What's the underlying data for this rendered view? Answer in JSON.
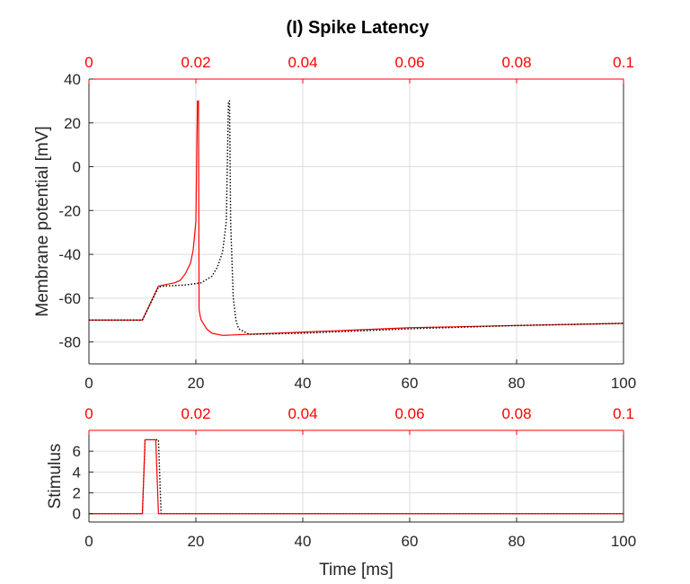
{
  "colors": {
    "primary_series": "#ff0000",
    "secondary_series": "#000000",
    "top_axis": "#ff0000",
    "grid": "#dcdcdc",
    "axes": "#262626"
  },
  "chart_data": [
    {
      "type": "line",
      "title": "(I) Spike Latency",
      "xlabel": "",
      "ylabel": "Membrane potential [mV]",
      "xlim": [
        0,
        100
      ],
      "ylim": [
        -90,
        40
      ],
      "x_ticks": [
        "0",
        "20",
        "40",
        "60",
        "80",
        "100"
      ],
      "y_ticks": [
        "40",
        "20",
        "0",
        "-20",
        "-40",
        "-60",
        "-80"
      ],
      "top_axis_ticks": [
        "0",
        "0.02",
        "0.04",
        "0.06",
        "0.08",
        "0.1"
      ],
      "grid": true,
      "series": [
        {
          "style": "solid",
          "color": "#ff0000",
          "x": [
            0,
            10,
            13,
            14,
            16,
            17,
            18,
            19,
            19.5,
            20,
            20.3,
            20.5,
            20.6,
            20.8,
            21,
            22,
            23,
            25,
            30,
            40,
            60,
            80,
            100
          ],
          "y": [
            -70,
            -70,
            -54.5,
            -54,
            -53,
            -52,
            -49,
            -44,
            -38,
            -25,
            30,
            30,
            -65,
            -68,
            -70,
            -74,
            -76,
            -77,
            -76.5,
            -75.5,
            -73.5,
            -72.5,
            -71.5
          ]
        },
        {
          "style": "dotted",
          "color": "#000000",
          "x": [
            0,
            10,
            13,
            14,
            18,
            21,
            23,
            24,
            25,
            25.7,
            26.1,
            26.3,
            26.5,
            27,
            27.5,
            28,
            30,
            40,
            60,
            80,
            100
          ],
          "y": [
            -70,
            -70,
            -55,
            -54.5,
            -54,
            -53,
            -50,
            -46,
            -39,
            -25,
            30,
            30,
            -25,
            -60,
            -70,
            -74,
            -76.5,
            -76,
            -74,
            -72.5,
            -71.5
          ]
        }
      ]
    },
    {
      "type": "line",
      "title": "",
      "xlabel": "Time [ms]",
      "ylabel": "Stimulus",
      "xlim": [
        0,
        100
      ],
      "ylim": [
        -0.8,
        8
      ],
      "x_ticks": [
        "0",
        "20",
        "40",
        "60",
        "80",
        "100"
      ],
      "y_ticks": [
        "6",
        "4",
        "2",
        "0"
      ],
      "top_axis_ticks": [
        "0",
        "0.02",
        "0.04",
        "0.06",
        "0.08",
        "0.1"
      ],
      "grid": true,
      "series": [
        {
          "style": "dotted",
          "color": "#000000",
          "x": [
            0,
            10,
            10.5,
            13,
            13.5,
            100
          ],
          "y": [
            0,
            0,
            7.1,
            7.1,
            0,
            0
          ]
        },
        {
          "style": "solid",
          "color": "#ff0000",
          "x": [
            0,
            10,
            10.5,
            12.5,
            13,
            100
          ],
          "y": [
            0,
            0,
            7.1,
            7.1,
            0,
            0
          ]
        }
      ]
    }
  ]
}
